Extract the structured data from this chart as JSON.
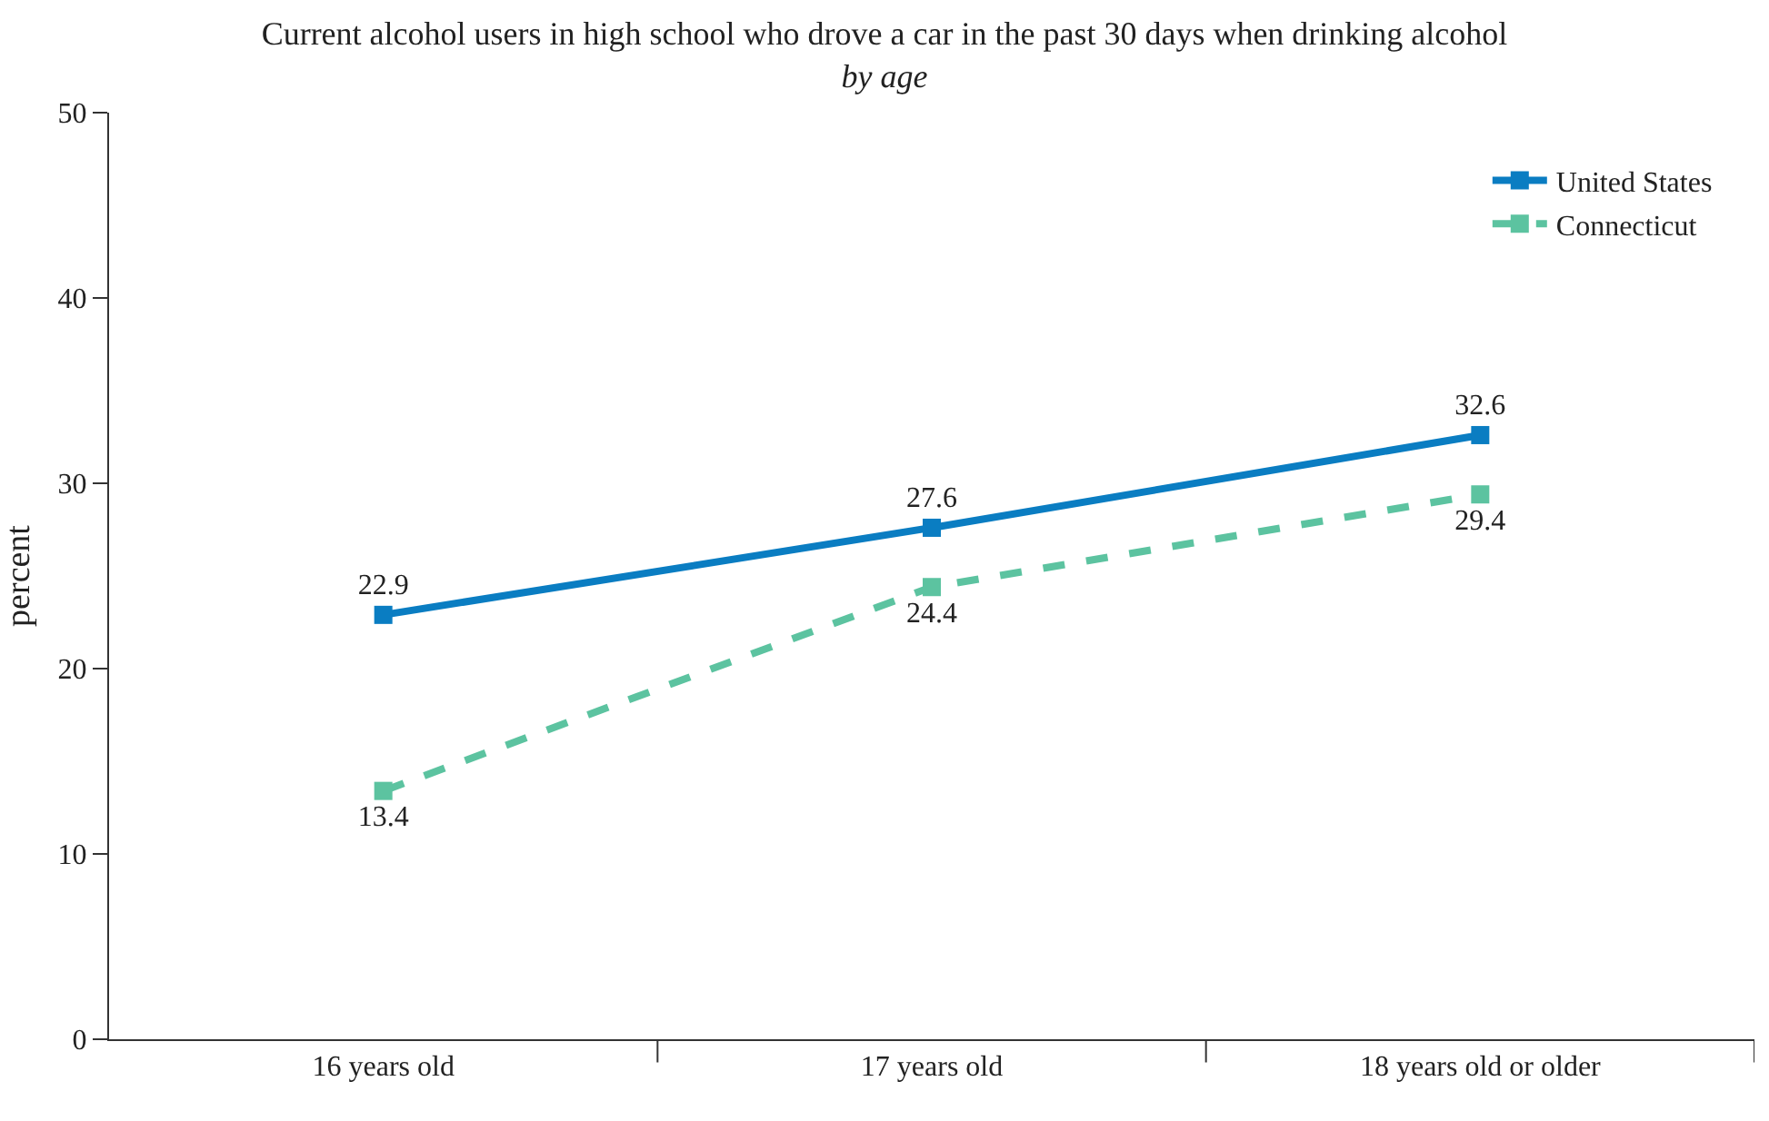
{
  "chart_data": {
    "type": "line",
    "title": "Current alcohol users in high school who drove a car in the past 30 days when drinking alcohol",
    "subtitle": "by age",
    "ylabel": "percent",
    "categories": [
      "16 years old",
      "17 years old",
      "18 years old or older"
    ],
    "series": [
      {
        "name": "United States",
        "color": "#0a7dc2",
        "values": [
          22.9,
          27.6,
          32.6
        ],
        "line_style": "solid"
      },
      {
        "name": "Connecticut",
        "color": "#5cc3a0",
        "values": [
          13.4,
          24.4,
          29.4
        ],
        "line_style": "dashed"
      }
    ],
    "ylim": [
      0,
      50
    ],
    "yticks": [
      0,
      10,
      20,
      30,
      40,
      50
    ],
    "legend": "top right",
    "marker": "square",
    "data_labels": true
  }
}
